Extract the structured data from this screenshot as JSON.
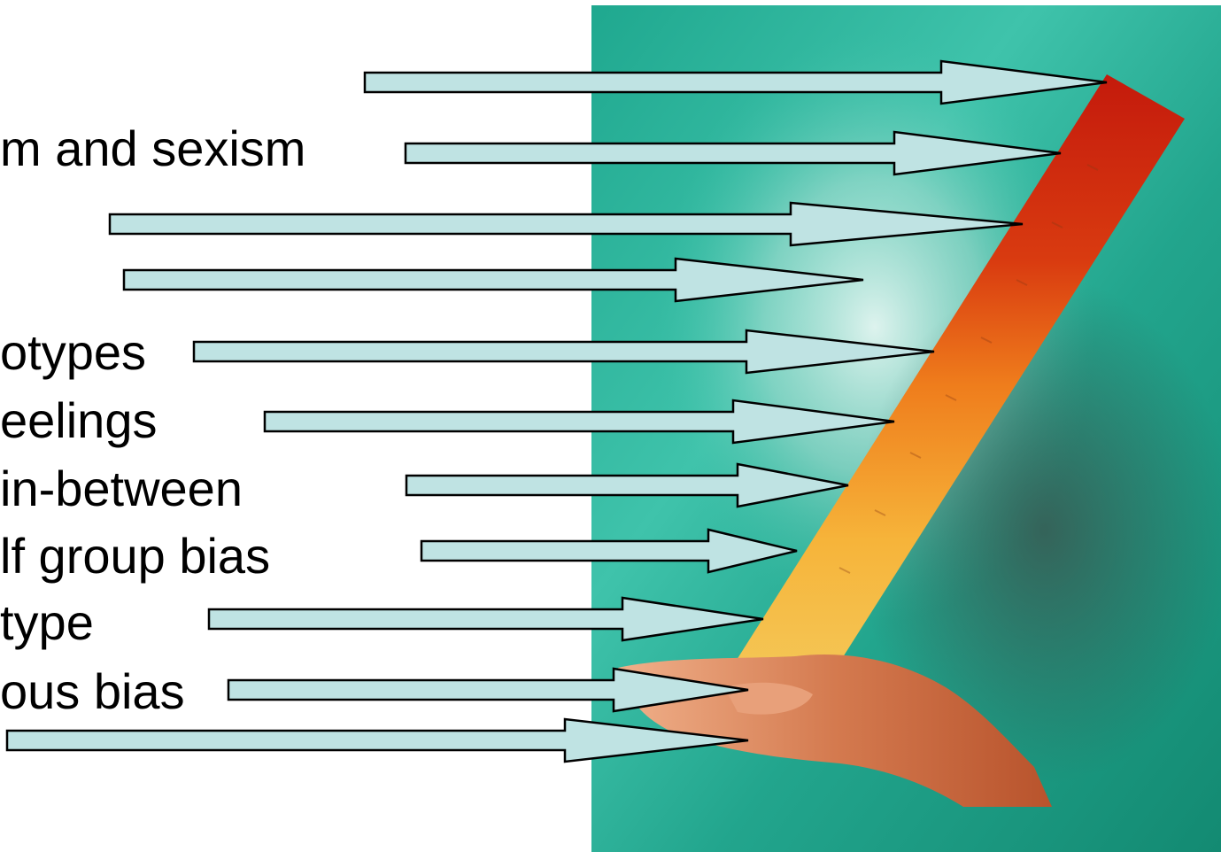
{
  "labels": [
    "",
    "m and sexism",
    "",
    "",
    "otypes",
    "eelings",
    " in-between",
    "lf group bias",
    "type",
    "ous bias",
    ""
  ],
  "colors": {
    "background": "#ffffff",
    "arrow_fill": "#bfe3e3",
    "arrow_stroke": "#000000",
    "ruler_top": "#c81a0e",
    "ruler_bottom": "#f7c23c",
    "photo_bg": "#2ab39a",
    "hand": "#d4784e"
  },
  "icons": {
    "arrow": "right-arrow-icon",
    "ruler": "ruler-icon",
    "hand": "hand-icon"
  }
}
